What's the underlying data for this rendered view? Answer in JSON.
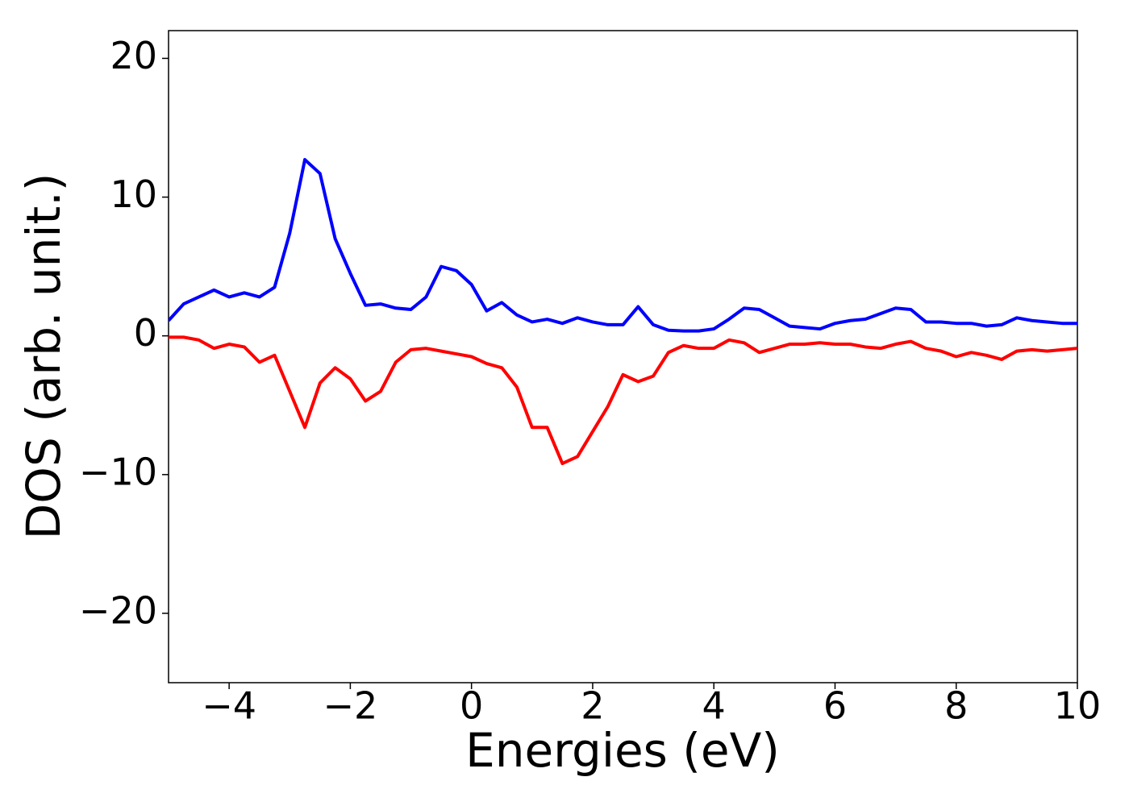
{
  "chart_data": {
    "type": "line",
    "x_label": "Energies (eV)",
    "y_label": "DOS (arb. unit.)",
    "x": [
      -5,
      -4.75,
      -4.5,
      -4.25,
      -4,
      -3.75,
      -3.5,
      -3.25,
      -3,
      -2.75,
      -2.5,
      -2.25,
      -2,
      -1.75,
      -1.5,
      -1.25,
      -1,
      -0.75,
      -0.5,
      -0.25,
      0,
      0.25,
      0.5,
      0.75,
      1,
      1.25,
      1.5,
      1.75,
      2,
      2.25,
      2.5,
      2.75,
      3,
      3.25,
      3.5,
      3.75,
      4,
      4.25,
      4.5,
      4.75,
      5,
      5.25,
      5.5,
      5.75,
      6,
      6.25,
      6.5,
      6.75,
      7,
      7.25,
      7.5,
      7.75,
      8,
      8.25,
      8.5,
      8.75,
      9,
      9.25,
      9.5,
      9.75,
      10
    ],
    "series": [
      {
        "color": "#0000ff",
        "values": [
          1.1,
          2.3,
          2.8,
          3.3,
          2.8,
          3.1,
          2.8,
          3.5,
          7.4,
          12.7,
          11.7,
          7.0,
          4.5,
          2.2,
          2.3,
          2.0,
          1.9,
          2.8,
          5.0,
          4.7,
          3.7,
          1.8,
          2.4,
          1.5,
          1.0,
          1.2,
          0.9,
          1.3,
          1.0,
          0.8,
          0.8,
          2.1,
          0.8,
          0.4,
          0.35,
          0.35,
          0.5,
          1.2,
          2.0,
          1.9,
          1.3,
          0.7,
          0.6,
          0.5,
          0.9,
          1.1,
          1.2,
          1.6,
          2.0,
          1.9,
          1.0,
          1.0,
          0.9,
          0.9,
          0.7,
          0.8,
          1.3,
          1.1,
          1.0,
          0.9,
          0.9
        ]
      },
      {
        "color": "#ff0000",
        "values": [
          -0.1,
          -0.1,
          -0.3,
          -0.9,
          -0.6,
          -0.8,
          -1.9,
          -1.4,
          -4.0,
          -6.6,
          -3.4,
          -2.3,
          -3.1,
          -4.7,
          -4.0,
          -1.9,
          -1.0,
          -0.9,
          -1.1,
          -1.3,
          -1.5,
          -2.0,
          -2.3,
          -3.7,
          -6.6,
          -6.6,
          -9.2,
          -8.7,
          -6.9,
          -5.1,
          -2.8,
          -3.3,
          -2.9,
          -1.2,
          -0.7,
          -0.9,
          -0.9,
          -0.3,
          -0.5,
          -1.2,
          -0.9,
          -0.6,
          -0.6,
          -0.5,
          -0.6,
          -0.6,
          -0.8,
          -0.9,
          -0.6,
          -0.4,
          -0.9,
          -1.1,
          -1.5,
          -1.2,
          -1.4,
          -1.7,
          -1.1,
          -1.0,
          -1.1,
          -1.0,
          -0.9
        ]
      }
    ],
    "xlim": [
      -5,
      10
    ],
    "ylim": [
      -25,
      22
    ],
    "xticks": [
      {
        "value": -4,
        "label": "−4"
      },
      {
        "value": -2,
        "label": "−2"
      },
      0,
      2,
      4,
      6,
      8,
      10
    ],
    "yticks": [
      {
        "value": -20,
        "label": "−20"
      },
      {
        "value": -10,
        "label": "−10"
      },
      0,
      10,
      20
    ]
  }
}
